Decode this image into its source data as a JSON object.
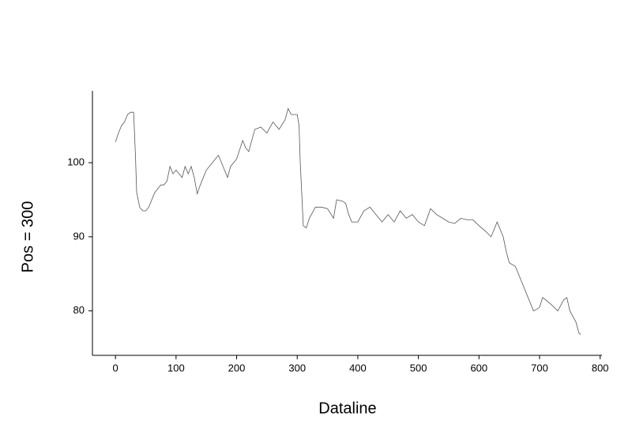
{
  "chart_data": {
    "type": "line",
    "xlabel": "Dataline",
    "ylabel": "Pos = 300",
    "color": "#555555",
    "x": [
      0,
      5,
      10,
      15,
      20,
      25,
      30,
      33,
      35,
      40,
      45,
      50,
      55,
      60,
      65,
      70,
      75,
      80,
      85,
      90,
      95,
      100,
      105,
      110,
      115,
      120,
      125,
      130,
      135,
      140,
      145,
      150,
      160,
      170,
      180,
      185,
      190,
      200,
      210,
      215,
      220,
      230,
      240,
      250,
      260,
      270,
      280,
      285,
      290,
      300,
      303,
      305,
      308,
      310,
      315,
      320,
      330,
      340,
      350,
      360,
      365,
      375,
      380,
      385,
      390,
      400,
      410,
      420,
      430,
      440,
      450,
      460,
      470,
      480,
      490,
      500,
      510,
      520,
      530,
      540,
      550,
      560,
      570,
      580,
      590,
      600,
      610,
      620,
      630,
      640,
      645,
      650,
      660,
      670,
      680,
      690,
      695,
      700,
      705,
      710,
      720,
      730,
      740,
      745,
      750,
      760,
      765,
      768
    ],
    "values": [
      102.8,
      104,
      105,
      105.5,
      106.5,
      106.8,
      106.8,
      101,
      96,
      94,
      93.5,
      93.5,
      94,
      95,
      96,
      96.5,
      97,
      97,
      97.5,
      99.5,
      98.5,
      99,
      98.5,
      98,
      99.5,
      98.5,
      99.5,
      98,
      95.8,
      97,
      98,
      99,
      100,
      101,
      99,
      98,
      99.5,
      100.5,
      103,
      102,
      101.5,
      104.5,
      104.8,
      104,
      105.5,
      104.5,
      105.8,
      107.3,
      106.5,
      106.5,
      105,
      100,
      95,
      91.5,
      91.2,
      92.5,
      94,
      94,
      93.8,
      92.5,
      95,
      94.8,
      94.5,
      93,
      92,
      92,
      93.5,
      94,
      93,
      92,
      93,
      92,
      93.5,
      92.5,
      93,
      92,
      91.5,
      93.8,
      93,
      92.5,
      92,
      91.8,
      92.5,
      92.3,
      92.3,
      91.5,
      90.8,
      90,
      92,
      90,
      88,
      86.5,
      86,
      84,
      82,
      80,
      80.2,
      80.5,
      81.8,
      81.5,
      80.8,
      80,
      81.5,
      81.8,
      80,
      78.5,
      77,
      76.8
    ],
    "xlim": [
      -38,
      803
    ],
    "ylim": [
      74,
      109.7
    ],
    "xticks": [
      0,
      100,
      200,
      300,
      400,
      500,
      600,
      700,
      800
    ],
    "yticks": [
      80,
      90,
      100
    ]
  }
}
